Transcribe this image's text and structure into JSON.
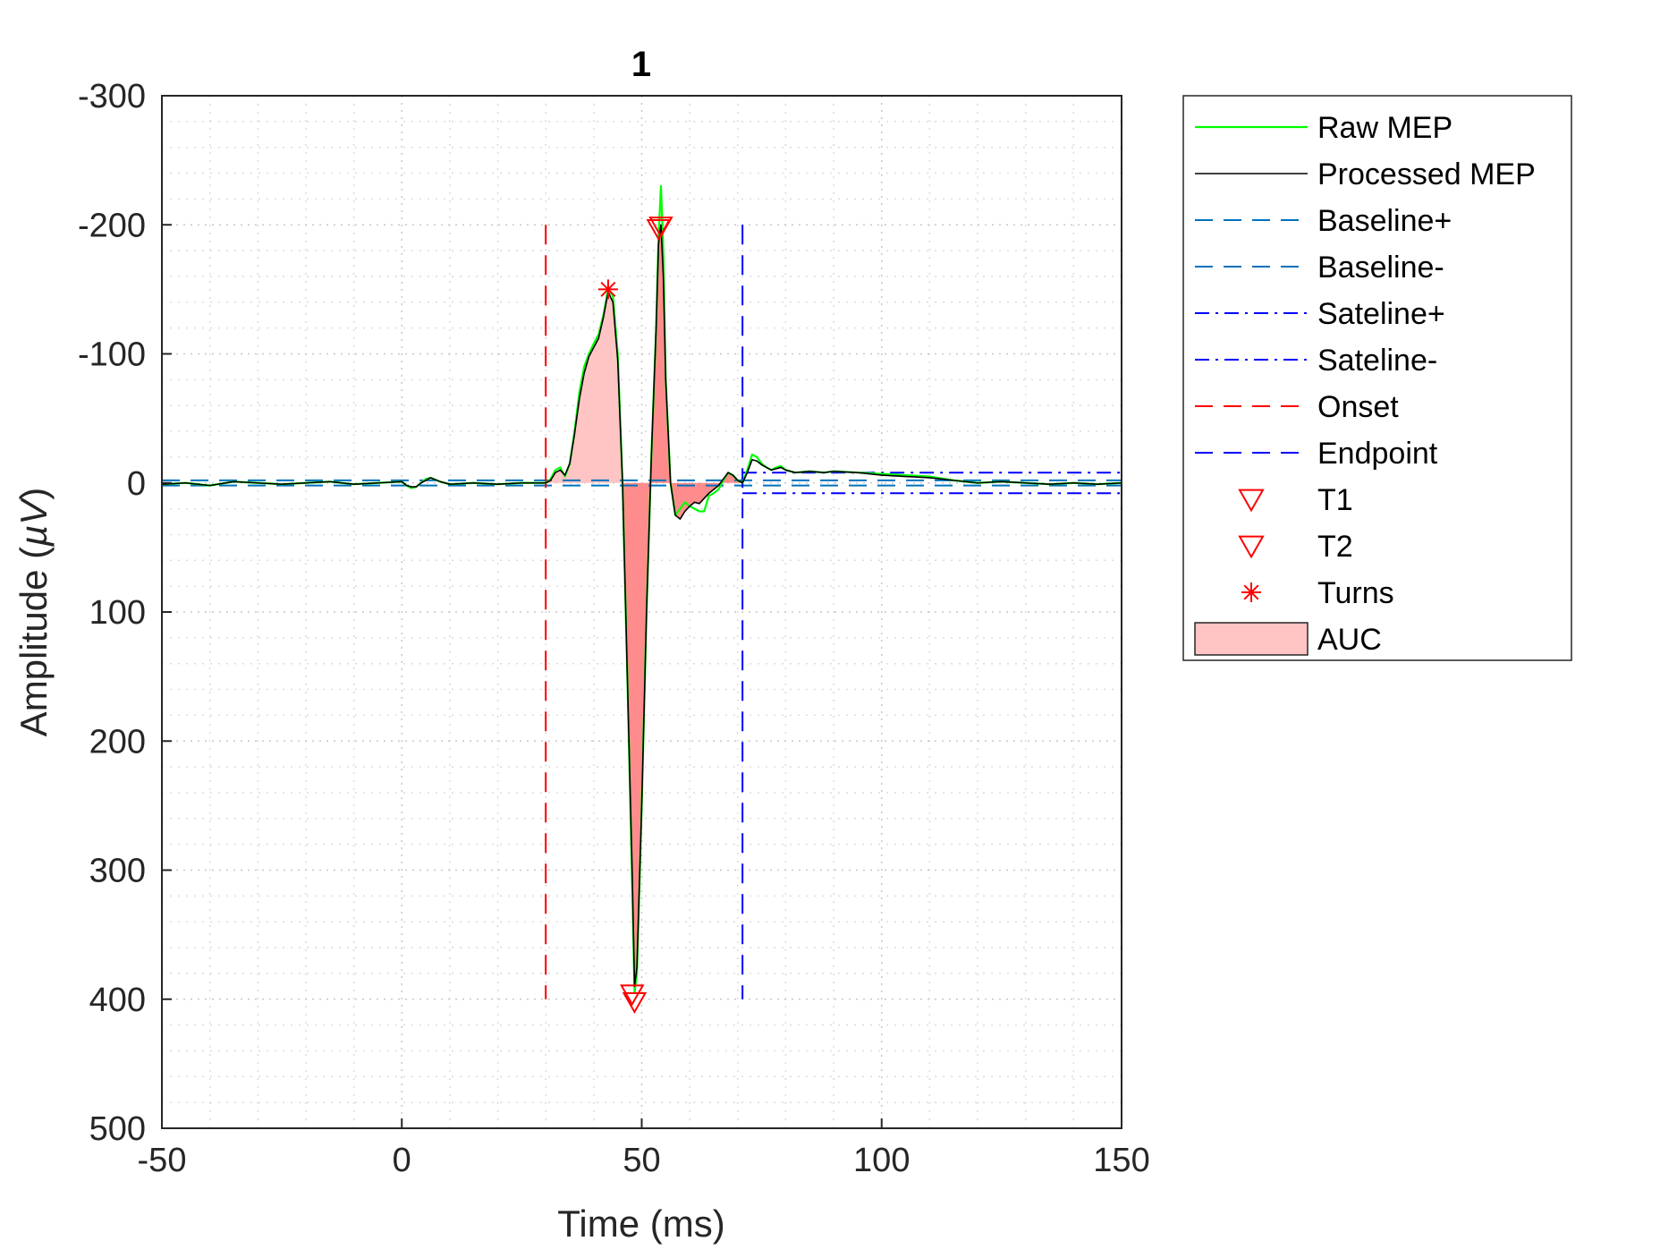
{
  "chart_data": {
    "type": "line",
    "title": "1",
    "xlabel": "Time (ms)",
    "ylabel_main": "Amplitude (",
    "ylabel_unit": "µV",
    "ylabel_close": ")",
    "xlim": [
      -50,
      150
    ],
    "ylim": [
      -300,
      500
    ],
    "y_reversed": true,
    "xticks": [
      -50,
      0,
      50,
      100,
      150
    ],
    "xtick_labels": [
      "-50",
      "0",
      "50",
      "100",
      "150"
    ],
    "yticks": [
      -300,
      -200,
      -100,
      0,
      100,
      200,
      300,
      400,
      500
    ],
    "ytick_labels": [
      "-300",
      "-200",
      "-100",
      "0",
      "100",
      "200",
      "300",
      "400",
      "500"
    ],
    "minor_x_step": 10,
    "minor_y_step": 20,
    "grid": true,
    "legend_position": "outside-right",
    "series": [
      {
        "name": "Raw MEP",
        "color": "#00ff00",
        "style": "solid",
        "x": [
          -50,
          -45,
          -40,
          -35,
          -30,
          -25,
          -20,
          -15,
          -10,
          -5,
          0,
          1,
          2,
          3,
          4,
          5,
          6,
          8,
          10,
          15,
          20,
          25,
          30,
          31,
          32,
          33,
          34,
          35,
          36,
          37,
          38,
          39,
          40,
          41,
          42,
          43,
          44,
          45,
          46,
          47,
          48,
          48.5,
          49,
          50,
          51,
          52,
          53,
          53.5,
          54,
          54.5,
          55,
          56,
          57,
          58,
          59,
          60,
          61,
          62,
          63,
          64,
          65,
          66,
          67,
          68,
          69,
          70,
          71,
          72,
          73,
          74,
          75,
          76,
          77,
          78,
          79,
          80,
          82,
          85,
          88,
          90,
          95,
          100,
          105,
          110,
          115,
          120,
          125,
          130,
          135,
          140,
          145,
          150
        ],
        "y": [
          1,
          0,
          2,
          -1,
          0,
          1,
          0,
          -1,
          1,
          0,
          -1,
          2,
          4,
          3,
          0,
          -3,
          -4,
          -1,
          1,
          0,
          1,
          0,
          0,
          -3,
          -10,
          -12,
          -5,
          -15,
          -40,
          -70,
          -90,
          -100,
          -108,
          -115,
          -130,
          -150,
          -145,
          -100,
          0,
          150,
          310,
          395,
          380,
          250,
          100,
          -20,
          -120,
          -190,
          -230,
          -180,
          -80,
          0,
          25,
          20,
          15,
          18,
          20,
          22,
          22,
          10,
          8,
          5,
          -2,
          -8,
          -6,
          -2,
          0,
          -10,
          -22,
          -20,
          -15,
          -12,
          -10,
          -12,
          -13,
          -10,
          -8,
          -9,
          -8,
          -9,
          -8,
          -7,
          -6,
          -5,
          -2,
          0,
          -1,
          0,
          1,
          0,
          1,
          0
        ]
      },
      {
        "name": "Processed MEP",
        "color": "#000000",
        "style": "solid",
        "x": [
          -50,
          -45,
          -40,
          -35,
          -30,
          -25,
          -20,
          -15,
          -10,
          -5,
          0,
          1,
          2,
          3,
          4,
          5,
          6,
          8,
          10,
          15,
          20,
          25,
          30,
          31,
          32,
          33,
          34,
          35,
          36,
          37,
          38,
          39,
          40,
          41,
          42,
          43,
          44,
          45,
          46,
          47,
          48,
          48.5,
          49,
          50,
          51,
          52,
          53,
          53.5,
          54,
          54.5,
          55,
          56,
          57,
          58,
          59,
          60,
          61,
          62,
          63,
          64,
          65,
          66,
          67,
          68,
          69,
          70,
          71,
          72,
          73,
          74,
          75,
          76,
          77,
          78,
          79,
          80,
          82,
          85,
          88,
          90,
          95,
          100,
          105,
          110,
          115,
          120,
          125,
          130,
          135,
          140,
          145,
          150
        ],
        "y": [
          1,
          0,
          2,
          -1,
          0,
          1,
          0,
          -1,
          1,
          0,
          -1,
          2,
          3,
          3,
          0,
          -2,
          -4,
          -1,
          1,
          0,
          1,
          0,
          0,
          -2,
          -8,
          -10,
          -6,
          -15,
          -38,
          -65,
          -85,
          -98,
          -105,
          -112,
          -128,
          -148,
          -140,
          -95,
          0,
          150,
          300,
          390,
          375,
          250,
          100,
          -20,
          -120,
          -185,
          -200,
          -160,
          -80,
          0,
          25,
          28,
          22,
          18,
          15,
          16,
          12,
          8,
          5,
          2,
          -3,
          -8,
          -6,
          -2,
          0,
          -8,
          -18,
          -17,
          -14,
          -12,
          -10,
          -11,
          -12,
          -10,
          -8,
          -9,
          -8,
          -9,
          -8,
          -6,
          -5,
          -4,
          -2,
          0,
          -1,
          0,
          1,
          0,
          1,
          0
        ]
      }
    ],
    "baseline": {
      "plus_name": "Baseline+",
      "minus_name": "Baseline-",
      "plus": -2,
      "minus": 2,
      "x_range": [
        -50,
        150
      ],
      "color": "#0072bd"
    },
    "sateline": {
      "plus_name": "Sateline+",
      "minus_name": "Sateline-",
      "plus": -8,
      "minus": 8,
      "x_range": [
        71,
        150
      ],
      "color": "#0000ff"
    },
    "onset": {
      "name": "Onset",
      "x": 30,
      "y_range": [
        -200,
        400
      ],
      "color": "#ff0000"
    },
    "endpoint": {
      "name": "Endpoint",
      "x": 71,
      "y_range": [
        -200,
        400
      ],
      "color": "#0000ff"
    },
    "t1": {
      "name": "T1",
      "points": [
        {
          "x": 48,
          "y": 396
        },
        {
          "x": 54,
          "y": -199
        }
      ],
      "color": "#ff0000"
    },
    "t2": {
      "name": "T2",
      "points": [
        {
          "x": 48.5,
          "y": 402
        },
        {
          "x": 53.5,
          "y": -197
        }
      ],
      "color": "#ff0000"
    },
    "turns": {
      "name": "Turns",
      "points": [
        {
          "x": 43,
          "y": -150
        }
      ],
      "color": "#ff0000"
    },
    "auc": {
      "name": "AUC",
      "x_range": [
        30,
        71
      ],
      "fill_first": "#ffc4c4",
      "fill_rest": "#ff8c8c",
      "first_lobe_end": 46
    }
  }
}
